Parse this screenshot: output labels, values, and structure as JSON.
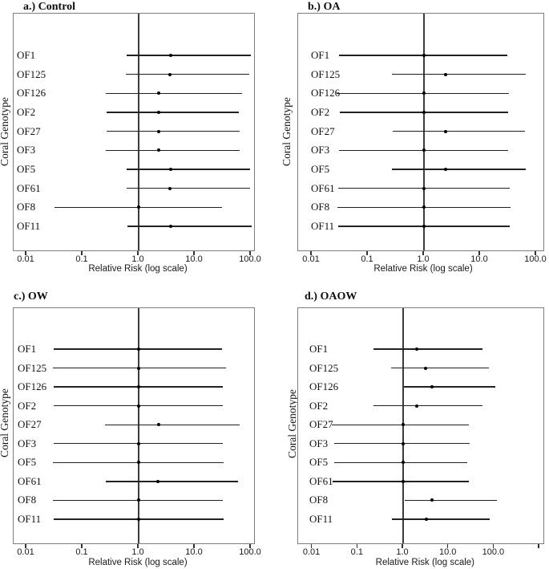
{
  "figure": {
    "description": "Forest plots of relative risk by coral genotype under four treatments",
    "ylabel": "Coral Genotype",
    "xlabel": "Relative Risk (log scale)",
    "line_color": "#222222",
    "point_color": "#000000",
    "reference_line_color": "#3c3c3c"
  },
  "chart_data": [
    {
      "type": "scatter",
      "subtype": "forest_plot_horizontal_ci",
      "title": "a.) Control",
      "xlabel": "Relative Risk (log scale)",
      "ylabel": "Coral Genotype",
      "xscale": "log",
      "xlim": [
        0.006,
        120
      ],
      "grid": false,
      "legend": false,
      "reference_line_x": 1.0,
      "xticks": [
        0.01,
        0.1,
        1.0,
        10.0,
        100.0
      ],
      "xtick_labels": [
        "0.01",
        "0.1",
        "1.0",
        "10.0",
        "100.0"
      ],
      "categories": [
        "OF1",
        "OF125",
        "OF126",
        "OF2",
        "OF27",
        "OF3",
        "OF5",
        "OF61",
        "OF8",
        "OF11"
      ],
      "rows": [
        {
          "genotype": "OF1",
          "rr": 3.7,
          "ci_low": 0.62,
          "ci_high": 100
        },
        {
          "genotype": "OF125",
          "rr": 3.6,
          "ci_low": 0.6,
          "ci_high": 95
        },
        {
          "genotype": "OF126",
          "rr": 2.3,
          "ci_low": 0.26,
          "ci_high": 70
        },
        {
          "genotype": "OF2",
          "rr": 2.3,
          "ci_low": 0.27,
          "ci_high": 61
        },
        {
          "genotype": "OF27",
          "rr": 2.3,
          "ci_low": 0.27,
          "ci_high": 63
        },
        {
          "genotype": "OF3",
          "rr": 2.3,
          "ci_low": 0.26,
          "ci_high": 63
        },
        {
          "genotype": "OF5",
          "rr": 3.7,
          "ci_low": 0.62,
          "ci_high": 98
        },
        {
          "genotype": "OF61",
          "rr": 3.6,
          "ci_low": 0.61,
          "ci_high": 96
        },
        {
          "genotype": "OF8",
          "rr": 1.0,
          "ci_low": 0.032,
          "ci_high": 31
        },
        {
          "genotype": "OF11",
          "rr": 3.7,
          "ci_low": 0.63,
          "ci_high": 104
        }
      ]
    },
    {
      "type": "scatter",
      "subtype": "forest_plot_horizontal_ci",
      "title": "b.) OA",
      "xlabel": "Relative Risk (log scale)",
      "ylabel": "Coral Genotype",
      "xscale": "log",
      "xlim": [
        0.006,
        140
      ],
      "grid": false,
      "legend": false,
      "reference_line_x": 1.0,
      "xticks": [
        0.01,
        0.1,
        1.0,
        10.0,
        100.0
      ],
      "xtick_labels": [
        "0.01",
        "0.1",
        "1.0",
        "10.0",
        "100.0"
      ],
      "categories": [
        "OF1",
        "OF125",
        "OF126",
        "OF2",
        "OF27",
        "OF3",
        "OF5",
        "OF61",
        "OF8",
        "OF11"
      ],
      "rows": [
        {
          "genotype": "OF1",
          "rr": 1.0,
          "ci_low": 0.031,
          "ci_high": 31
        },
        {
          "genotype": "OF125",
          "rr": 2.4,
          "ci_low": 0.27,
          "ci_high": 66
        },
        {
          "genotype": "OF126",
          "rr": 1.0,
          "ci_low": 0.028,
          "ci_high": 33
        },
        {
          "genotype": "OF2",
          "rr": 1.0,
          "ci_low": 0.032,
          "ci_high": 32
        },
        {
          "genotype": "OF27",
          "rr": 2.4,
          "ci_low": 0.28,
          "ci_high": 63
        },
        {
          "genotype": "OF3",
          "rr": 1.0,
          "ci_low": 0.031,
          "ci_high": 32
        },
        {
          "genotype": "OF5",
          "rr": 2.4,
          "ci_low": 0.27,
          "ci_high": 66
        },
        {
          "genotype": "OF61",
          "rr": 1.0,
          "ci_low": 0.03,
          "ci_high": 34
        },
        {
          "genotype": "OF8",
          "rr": 1.0,
          "ci_low": 0.029,
          "ci_high": 35
        },
        {
          "genotype": "OF11",
          "rr": 1.0,
          "ci_low": 0.03,
          "ci_high": 34
        }
      ]
    },
    {
      "type": "scatter",
      "subtype": "forest_plot_horizontal_ci",
      "title": "c.) OW",
      "xlabel": "Relative Risk (log scale)",
      "ylabel": "Coral Genotype",
      "xscale": "log",
      "xlim": [
        0.006,
        120
      ],
      "grid": false,
      "legend": false,
      "reference_line_x": 1.0,
      "xticks": [
        0.01,
        0.1,
        1.0,
        10.0,
        100.0
      ],
      "xtick_labels": [
        "0.01",
        "0.1",
        "1.0",
        "10.0",
        "100.0"
      ],
      "categories": [
        "OF1",
        "OF125",
        "OF126",
        "OF2",
        "OF27",
        "OF3",
        "OF5",
        "OF61",
        "OF8",
        "OF11"
      ],
      "rows": [
        {
          "genotype": "OF1",
          "rr": 1.0,
          "ci_low": 0.031,
          "ci_high": 31
        },
        {
          "genotype": "OF125",
          "rr": 1.0,
          "ci_low": 0.03,
          "ci_high": 36
        },
        {
          "genotype": "OF126",
          "rr": 1.0,
          "ci_low": 0.031,
          "ci_high": 32
        },
        {
          "genotype": "OF2",
          "rr": 1.0,
          "ci_low": 0.031,
          "ci_high": 32
        },
        {
          "genotype": "OF27",
          "rr": 2.3,
          "ci_low": 0.25,
          "ci_high": 63
        },
        {
          "genotype": "OF3",
          "rr": 1.0,
          "ci_low": 0.031,
          "ci_high": 32
        },
        {
          "genotype": "OF5",
          "rr": 1.0,
          "ci_low": 0.03,
          "ci_high": 33
        },
        {
          "genotype": "OF61",
          "rr": 2.2,
          "ci_low": 0.26,
          "ci_high": 60
        },
        {
          "genotype": "OF8",
          "rr": 1.0,
          "ci_low": 0.03,
          "ci_high": 32
        },
        {
          "genotype": "OF11",
          "rr": 1.0,
          "ci_low": 0.031,
          "ci_high": 33
        }
      ]
    },
    {
      "type": "scatter",
      "subtype": "forest_plot_horizontal_ci",
      "title": "d.) OAOW",
      "xlabel": "Relative Risk (log scale)",
      "ylabel": "Coral Genotype",
      "xscale": "log",
      "xlim": [
        0.005,
        1300
      ],
      "grid": false,
      "legend": false,
      "reference_line_x": 1.0,
      "xticks": [
        0.01,
        0.1,
        1.0,
        10.0,
        100.0,
        1000.0
      ],
      "xtick_labels": [
        "0.01",
        "0.1",
        "1.0",
        "10.0",
        "100.0",
        ""
      ],
      "categories": [
        "OF1",
        "OF125",
        "OF126",
        "OF2",
        "OF27",
        "OF3",
        "OF5",
        "OF61",
        "OF8",
        "OF11"
      ],
      "rows": [
        {
          "genotype": "OF1",
          "rr": 2.0,
          "ci_low": 0.22,
          "ci_high": 55
        },
        {
          "genotype": "OF125",
          "rr": 3.1,
          "ci_low": 0.55,
          "ci_high": 78
        },
        {
          "genotype": "OF126",
          "rr": 4.3,
          "ci_low": 1.05,
          "ci_high": 105
        },
        {
          "genotype": "OF2",
          "rr": 2.0,
          "ci_low": 0.22,
          "ci_high": 55
        },
        {
          "genotype": "OF27",
          "rr": 1.0,
          "ci_low": 0.027,
          "ci_high": 28
        },
        {
          "genotype": "OF3",
          "rr": 1.0,
          "ci_low": 0.03,
          "ci_high": 29
        },
        {
          "genotype": "OF5",
          "rr": 1.0,
          "ci_low": 0.03,
          "ci_high": 26
        },
        {
          "genotype": "OF61",
          "rr": 1.0,
          "ci_low": 0.028,
          "ci_high": 28
        },
        {
          "genotype": "OF8",
          "rr": 4.3,
          "ci_low": 1.08,
          "ci_high": 118
        },
        {
          "genotype": "OF11",
          "rr": 3.2,
          "ci_low": 0.57,
          "ci_high": 80
        }
      ]
    }
  ]
}
